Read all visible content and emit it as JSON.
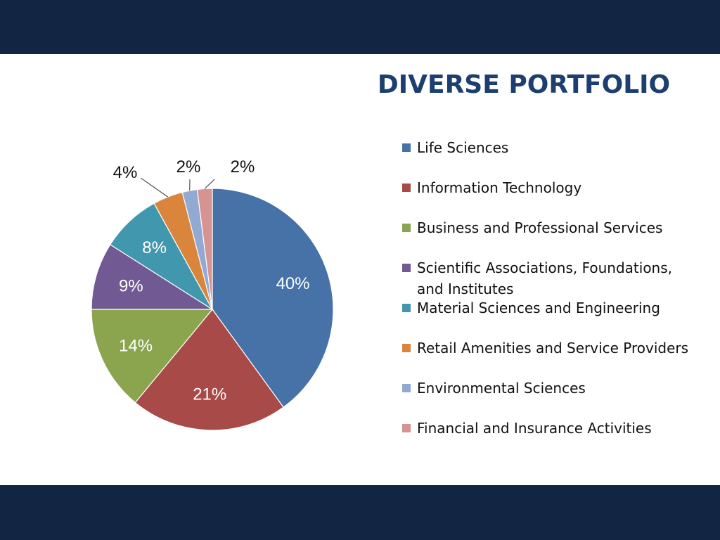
{
  "colors": {
    "band": "#122542",
    "title": "#1c3e70"
  },
  "slide": {
    "title": "DIVERSE PORTFOLIO"
  },
  "chart_data": {
    "type": "pie",
    "title": "",
    "start_angle_deg": 0,
    "direction": "clockwise",
    "legend_position": "right",
    "slices": [
      {
        "label": "Life Sciences",
        "value": 40,
        "value_label": "40%",
        "color": "#4672a8"
      },
      {
        "label": "Information Technology",
        "value": 21,
        "value_label": "21%",
        "color": "#a84a47"
      },
      {
        "label": "Business and Professional Services",
        "value": 14,
        "value_label": "14%",
        "color": "#8aa54e"
      },
      {
        "label": "Scientific Associations, Foundations, and Institutes",
        "value": 9,
        "value_label": "9%",
        "color": "#715a93"
      },
      {
        "label": "Material Sciences and Engineering",
        "value": 8,
        "value_label": "8%",
        "color": "#4197ad"
      },
      {
        "label": "Retail Amenities and Service Providers",
        "value": 4,
        "value_label": "4%",
        "color": "#d9853c"
      },
      {
        "label": "Environmental Sciences",
        "value": 2,
        "value_label": "2%",
        "color": "#92a9d2"
      },
      {
        "label": "Financial and Insurance Activities",
        "value": 2,
        "value_label": "2%",
        "color": "#d59391"
      }
    ]
  }
}
